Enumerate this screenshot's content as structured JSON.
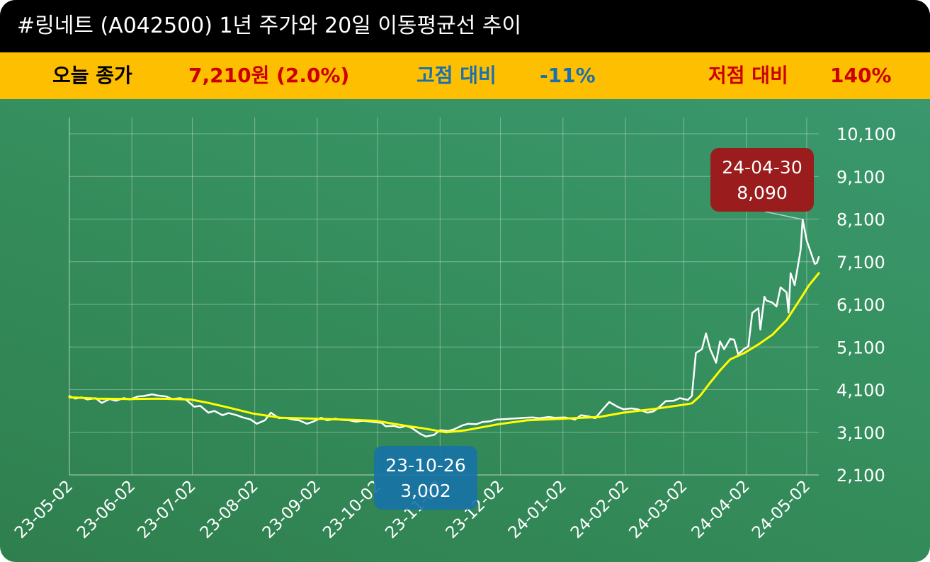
{
  "header": {
    "title": "#링네트 (A042500) 1년 주가와 20일 이동평균선 추이"
  },
  "info": {
    "today_label": "오늘 종가",
    "today_value": "7,210원 (2.0%)",
    "high_label": "고점 대비",
    "high_value": "-11%",
    "low_label": "저점 대비",
    "low_value": "140%"
  },
  "colors": {
    "title_bg": "#000000",
    "info_bg": "#fdbf00",
    "today_value": "#cc0000",
    "high_text": "#1a6fb0",
    "low_text": "#cc0000",
    "price_line": "#ffffff",
    "ma_line": "#ffff00",
    "high_marker": "#9b1c1c",
    "low_marker": "#1672a8"
  },
  "chart_data": {
    "type": "line",
    "title": "",
    "xlabel": "",
    "ylabel": "",
    "ylim": [
      2100,
      10100
    ],
    "yticks": [
      2100,
      3100,
      4100,
      5100,
      6100,
      7100,
      8100,
      9100,
      10100
    ],
    "ytick_labels": [
      "2,100",
      "3,100",
      "4,100",
      "5,100",
      "6,100",
      "7,100",
      "8,100",
      "9,100",
      "10,100"
    ],
    "xtick_labels": [
      "23-05-02",
      "23-06-02",
      "23-07-02",
      "23-08-02",
      "23-09-02",
      "23-10-02",
      "23-11-02",
      "23-12-02",
      "24-01-02",
      "24-02-02",
      "24-03-02",
      "24-04-02",
      "24-05-02"
    ],
    "x_start": "2023-05-02",
    "x_end": "2024-05-08",
    "grid": true,
    "series": [
      {
        "key": "price",
        "points": [
          [
            "2023-05-02",
            3950
          ],
          [
            "2023-05-05",
            3890
          ],
          [
            "2023-05-08",
            3920
          ],
          [
            "2023-05-11",
            3870
          ],
          [
            "2023-05-15",
            3900
          ],
          [
            "2023-05-18",
            3790
          ],
          [
            "2023-05-22",
            3880
          ],
          [
            "2023-05-25",
            3840
          ],
          [
            "2023-05-29",
            3900
          ],
          [
            "2023-06-01",
            3870
          ],
          [
            "2023-06-05",
            3940
          ],
          [
            "2023-06-08",
            3950
          ],
          [
            "2023-06-12",
            3990
          ],
          [
            "2023-06-15",
            3960
          ],
          [
            "2023-06-19",
            3940
          ],
          [
            "2023-06-22",
            3880
          ],
          [
            "2023-06-26",
            3900
          ],
          [
            "2023-06-29",
            3860
          ],
          [
            "2023-07-03",
            3700
          ],
          [
            "2023-07-06",
            3720
          ],
          [
            "2023-07-10",
            3560
          ],
          [
            "2023-07-13",
            3600
          ],
          [
            "2023-07-17",
            3500
          ],
          [
            "2023-07-20",
            3550
          ],
          [
            "2023-07-24",
            3500
          ],
          [
            "2023-07-27",
            3450
          ],
          [
            "2023-07-31",
            3400
          ],
          [
            "2023-08-03",
            3300
          ],
          [
            "2023-08-07",
            3380
          ],
          [
            "2023-08-10",
            3560
          ],
          [
            "2023-08-14",
            3430
          ],
          [
            "2023-08-17",
            3440
          ],
          [
            "2023-08-21",
            3400
          ],
          [
            "2023-08-24",
            3380
          ],
          [
            "2023-08-28",
            3300
          ],
          [
            "2023-08-31",
            3350
          ],
          [
            "2023-09-04",
            3440
          ],
          [
            "2023-09-07",
            3380
          ],
          [
            "2023-09-11",
            3420
          ],
          [
            "2023-09-14",
            3390
          ],
          [
            "2023-09-18",
            3380
          ],
          [
            "2023-09-21",
            3350
          ],
          [
            "2023-09-25",
            3370
          ],
          [
            "2023-10-04",
            3320
          ],
          [
            "2023-10-06",
            3240
          ],
          [
            "2023-10-10",
            3250
          ],
          [
            "2023-10-13",
            3210
          ],
          [
            "2023-10-16",
            3250
          ],
          [
            "2023-10-19",
            3200
          ],
          [
            "2023-10-23",
            3070
          ],
          [
            "2023-10-26",
            3002
          ],
          [
            "2023-10-30",
            3040
          ],
          [
            "2023-11-02",
            3150
          ],
          [
            "2023-11-06",
            3130
          ],
          [
            "2023-11-09",
            3170
          ],
          [
            "2023-11-13",
            3260
          ],
          [
            "2023-11-16",
            3300
          ],
          [
            "2023-11-20",
            3290
          ],
          [
            "2023-11-23",
            3340
          ],
          [
            "2023-11-27",
            3360
          ],
          [
            "2023-11-30",
            3400
          ],
          [
            "2023-12-04",
            3410
          ],
          [
            "2023-12-07",
            3420
          ],
          [
            "2023-12-11",
            3430
          ],
          [
            "2023-12-14",
            3440
          ],
          [
            "2023-12-18",
            3450
          ],
          [
            "2023-12-21",
            3430
          ],
          [
            "2023-12-26",
            3460
          ],
          [
            "2023-12-29",
            3440
          ],
          [
            "2024-01-03",
            3450
          ],
          [
            "2024-01-08",
            3400
          ],
          [
            "2024-01-11",
            3500
          ],
          [
            "2024-01-15",
            3470
          ],
          [
            "2024-01-18",
            3430
          ],
          [
            "2024-01-22",
            3650
          ],
          [
            "2024-01-25",
            3810
          ],
          [
            "2024-01-29",
            3700
          ],
          [
            "2024-02-01",
            3640
          ],
          [
            "2024-02-05",
            3660
          ],
          [
            "2024-02-08",
            3640
          ],
          [
            "2024-02-13",
            3560
          ],
          [
            "2024-02-16",
            3590
          ],
          [
            "2024-02-19",
            3700
          ],
          [
            "2024-02-22",
            3830
          ],
          [
            "2024-02-26",
            3840
          ],
          [
            "2024-02-29",
            3900
          ],
          [
            "2024-03-04",
            3860
          ],
          [
            "2024-03-06",
            3950
          ],
          [
            "2024-03-08",
            4960
          ],
          [
            "2024-03-11",
            5050
          ],
          [
            "2024-03-13",
            5420
          ],
          [
            "2024-03-15",
            5060
          ],
          [
            "2024-03-18",
            4730
          ],
          [
            "2024-03-20",
            5230
          ],
          [
            "2024-03-22",
            5050
          ],
          [
            "2024-03-25",
            5290
          ],
          [
            "2024-03-27",
            5270
          ],
          [
            "2024-03-29",
            4930
          ],
          [
            "2024-04-01",
            5060
          ],
          [
            "2024-04-03",
            5110
          ],
          [
            "2024-04-05",
            5900
          ],
          [
            "2024-04-08",
            6010
          ],
          [
            "2024-04-09",
            5510
          ],
          [
            "2024-04-11",
            6280
          ],
          [
            "2024-04-12",
            6190
          ],
          [
            "2024-04-15",
            6140
          ],
          [
            "2024-04-17",
            6050
          ],
          [
            "2024-04-19",
            6500
          ],
          [
            "2024-04-22",
            6380
          ],
          [
            "2024-04-23",
            5910
          ],
          [
            "2024-04-24",
            6830
          ],
          [
            "2024-04-25",
            6700
          ],
          [
            "2024-04-26",
            6550
          ],
          [
            "2024-04-29",
            7380
          ],
          [
            "2024-04-30",
            8090
          ],
          [
            "2024-05-02",
            7600
          ],
          [
            "2024-05-03",
            7460
          ],
          [
            "2024-05-06",
            7050
          ],
          [
            "2024-05-07",
            7070
          ],
          [
            "2024-05-08",
            7210
          ]
        ]
      },
      {
        "key": "ma20",
        "points": [
          [
            "2023-05-02",
            3920
          ],
          [
            "2023-05-16",
            3890
          ],
          [
            "2023-06-01",
            3880
          ],
          [
            "2023-06-15",
            3890
          ],
          [
            "2023-07-01",
            3870
          ],
          [
            "2023-07-10",
            3790
          ],
          [
            "2023-07-20",
            3680
          ],
          [
            "2023-08-01",
            3540
          ],
          [
            "2023-08-15",
            3440
          ],
          [
            "2023-09-01",
            3420
          ],
          [
            "2023-09-15",
            3400
          ],
          [
            "2023-10-01",
            3370
          ],
          [
            "2023-10-15",
            3260
          ],
          [
            "2023-10-25",
            3190
          ],
          [
            "2023-11-05",
            3100
          ],
          [
            "2023-11-15",
            3150
          ],
          [
            "2023-12-01",
            3290
          ],
          [
            "2023-12-15",
            3380
          ],
          [
            "2024-01-02",
            3420
          ],
          [
            "2024-01-20",
            3460
          ],
          [
            "2024-02-01",
            3560
          ],
          [
            "2024-02-15",
            3640
          ],
          [
            "2024-03-01",
            3740
          ],
          [
            "2024-03-06",
            3780
          ],
          [
            "2024-03-10",
            3950
          ],
          [
            "2024-03-15",
            4260
          ],
          [
            "2024-03-20",
            4550
          ],
          [
            "2024-03-25",
            4810
          ],
          [
            "2024-04-01",
            4960
          ],
          [
            "2024-04-08",
            5160
          ],
          [
            "2024-04-15",
            5390
          ],
          [
            "2024-04-22",
            5730
          ],
          [
            "2024-04-30",
            6310
          ],
          [
            "2024-05-03",
            6540
          ],
          [
            "2024-05-08",
            6830
          ]
        ]
      }
    ],
    "annotations": [
      {
        "kind": "high",
        "date_label": "24-04-30",
        "value_label": "8,090",
        "x": "2024-04-30",
        "y": 8090
      },
      {
        "kind": "low",
        "date_label": "23-10-26",
        "value_label": "3,002",
        "x": "2023-10-26",
        "y": 3002
      }
    ]
  }
}
